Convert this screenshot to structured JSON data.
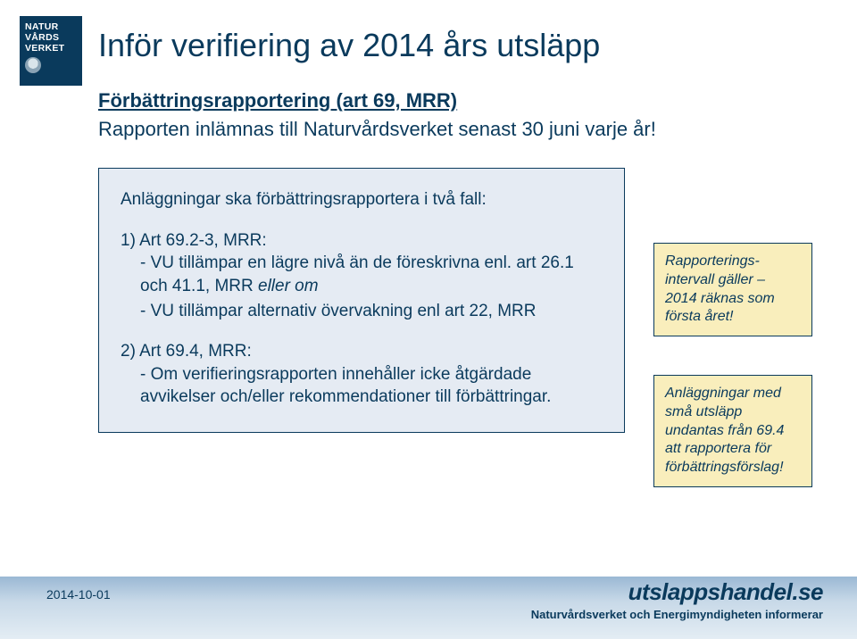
{
  "logo": {
    "line1": "NATUR",
    "line2": "VÅRDS",
    "line3": "VERKET"
  },
  "title": "Inför verifiering av 2014 års utsläpp",
  "subtitle": "Förbättringsrapportering (art 69, MRR)",
  "intro": "Rapporten inlämnas till Naturvårdsverket senast 30 juni varje år!",
  "box": {
    "lead": "Anläggningar ska förbättringsrapportera i två fall:",
    "item1_head": "1) Art 69.2-3, MRR:",
    "item1_sub1a": "- VU tillämpar en lägre nivå än de föreskrivna enl. art 26.1 och 41.1, MRR ",
    "item1_sub1b": "eller om",
    "item1_sub2": "- VU tillämpar alternativ övervakning enl art 22, MRR",
    "item2_head": "2)  Art 69.4, MRR:",
    "item2_sub": "- Om verifieringsrapporten innehåller icke åtgärdade avvikelser och/eller rekommendationer till förbättringar."
  },
  "note1": "Rapporterings-intervall gäller – 2014 räknas som första året!",
  "note2": "Anläggningar med små utsläpp undantas från 69.4 att rapportera  för förbättringsförslag!",
  "date": "2014-10-01",
  "brand": "utslappshandel.se",
  "brand_sub": "Naturvårdsverket och Energimyndigheten informerar"
}
